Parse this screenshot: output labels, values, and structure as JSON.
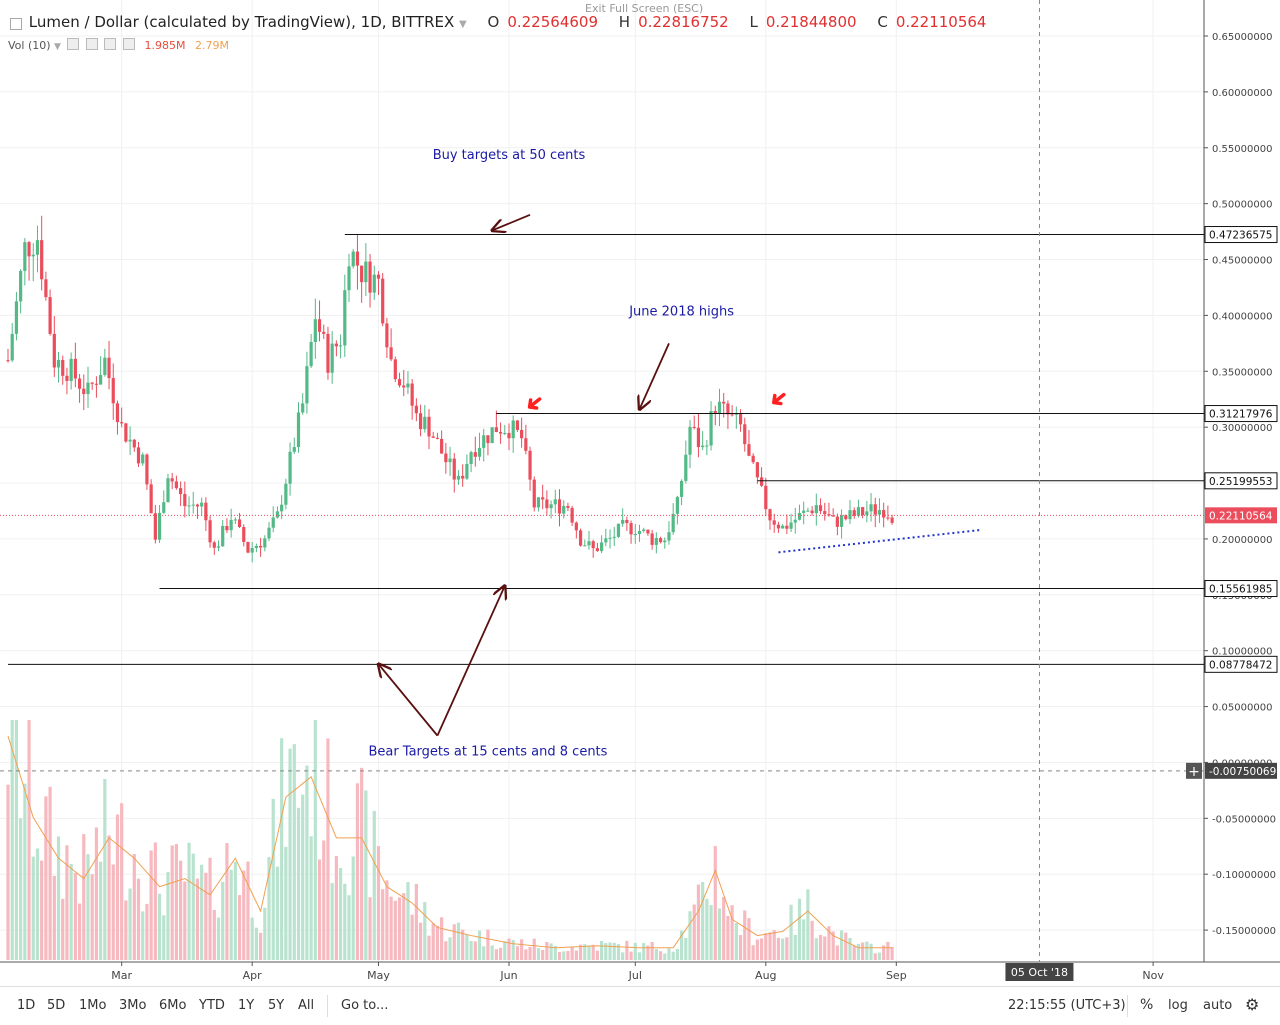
{
  "legend": {
    "title": "Lumen / Dollar (calculated by TradingView), 1D, BITTREX",
    "open_label": "O",
    "open": "0.22564609",
    "high_label": "H",
    "high": "0.22816752",
    "low_label": "L",
    "low": "0.21844800",
    "close_label": "C",
    "close": "0.22110564",
    "vol_label": "Vol (10)",
    "vol_a": "1.985M",
    "vol_b": "2.79M"
  },
  "exit_fullscreen": "Exit Full Screen (ESC)",
  "toolbar": {
    "timeframes": [
      "1D",
      "5D",
      "1Mo",
      "3Mo",
      "6Mo",
      "YTD",
      "1Y",
      "5Y",
      "All"
    ],
    "goto": "Go to...",
    "time": "22:15:55 (UTC+3)",
    "percent": "%",
    "log": "log",
    "auto": "auto",
    "gear_icon": "gear-icon"
  },
  "colors": {
    "up": "#53b987",
    "down": "#eb4d5c",
    "vol_up": "#b9e3cf",
    "vol_down": "#f6b9bf",
    "annotation": "#1a1aa6",
    "arrow": "#5a1010",
    "red_arrow": "#ff2020"
  },
  "chart_data": {
    "type": "candlestick",
    "symbol": "XLM/USD",
    "interval": "1D",
    "ylim": [
      -0.185,
      0.67
    ],
    "y_ticks": [
      "0.65000000",
      "0.60000000",
      "0.55000000",
      "0.50000000",
      "0.45000000",
      "0.40000000",
      "0.35000000",
      "0.30000000",
      "0.25000000",
      "0.20000000",
      "0.15000000",
      "0.10000000",
      "0.05000000",
      "0.00000000",
      "-0.05000000",
      "-0.10000000",
      "-0.15000000"
    ],
    "x_labels": [
      {
        "label": "Mar",
        "day": 27
      },
      {
        "label": "Apr",
        "day": 58
      },
      {
        "label": "May",
        "day": 88
      },
      {
        "label": "Jun",
        "day": 119
      },
      {
        "label": "Jul",
        "day": 149
      },
      {
        "label": "Aug",
        "day": 180
      },
      {
        "label": "Sep",
        "day": 211
      },
      {
        "label": "Nov",
        "day": 272
      }
    ],
    "x_highlight": {
      "label": "05 Oct '18",
      "day": 245
    },
    "crosshair": {
      "day": 245,
      "price": -0.0075,
      "label": "-0.00750069"
    },
    "price_lines": [
      {
        "value": 0.47236575,
        "label": "0.47236575",
        "from_day": 80
      },
      {
        "value": 0.31217976,
        "label": "0.31217976",
        "from_day": 116
      },
      {
        "value": 0.25199553,
        "label": "0.25199553",
        "from_day": 178
      },
      {
        "value": 0.15561985,
        "label": "0.15561985",
        "from_day": 36
      },
      {
        "value": 0.08778472,
        "label": "0.08778472",
        "from_day": 0
      }
    ],
    "last_price": {
      "value": 0.22110564,
      "label": "0.22110564"
    },
    "annotations": [
      {
        "text": "Buy targets at 50 cents",
        "day": 119,
        "price": 0.54
      },
      {
        "text": "June 2018 highs",
        "day": 160,
        "price": 0.4
      },
      {
        "text": "Bear Targets at 15 cents and 8 cents",
        "day": 114,
        "price": 0.006
      }
    ],
    "arrows": [
      {
        "from": [
          124,
          0.49
        ],
        "to": [
          115,
          0.476
        ]
      },
      {
        "from": [
          157,
          0.375
        ],
        "to": [
          150,
          0.316
        ]
      },
      {
        "from": [
          102,
          0.024
        ],
        "to": [
          88,
          0.088
        ]
      },
      {
        "from": [
          102,
          0.024
        ],
        "to": [
          118,
          0.158
        ]
      }
    ],
    "red_arrows": [
      {
        "day": 122,
        "price": 0.318
      },
      {
        "day": 180,
        "price": 0.322
      }
    ],
    "trendline": {
      "from": [
        183,
        0.188
      ],
      "to": [
        231,
        0.208
      ]
    },
    "anchors": [
      [
        0,
        0.36
      ],
      [
        4,
        0.46
      ],
      [
        7,
        0.47
      ],
      [
        11,
        0.36
      ],
      [
        15,
        0.35
      ],
      [
        19,
        0.33
      ],
      [
        23,
        0.36
      ],
      [
        27,
        0.3
      ],
      [
        32,
        0.27
      ],
      [
        35,
        0.2
      ],
      [
        38,
        0.26
      ],
      [
        42,
        0.23
      ],
      [
        46,
        0.23
      ],
      [
        49,
        0.19
      ],
      [
        53,
        0.22
      ],
      [
        57,
        0.19
      ],
      [
        61,
        0.2
      ],
      [
        64,
        0.22
      ],
      [
        67,
        0.27
      ],
      [
        70,
        0.32
      ],
      [
        73,
        0.4
      ],
      [
        76,
        0.36
      ],
      [
        79,
        0.38
      ],
      [
        81,
        0.46
      ],
      [
        84,
        0.44
      ],
      [
        88,
        0.43
      ],
      [
        91,
        0.36
      ],
      [
        94,
        0.34
      ],
      [
        97,
        0.31
      ],
      [
        100,
        0.3
      ],
      [
        104,
        0.27
      ],
      [
        107,
        0.25
      ],
      [
        110,
        0.28
      ],
      [
        113,
        0.29
      ],
      [
        116,
        0.3
      ],
      [
        119,
        0.3
      ],
      [
        122,
        0.29
      ],
      [
        125,
        0.23
      ],
      [
        129,
        0.23
      ],
      [
        133,
        0.23
      ],
      [
        136,
        0.2
      ],
      [
        139,
        0.19
      ],
      [
        143,
        0.2
      ],
      [
        146,
        0.21
      ],
      [
        149,
        0.21
      ],
      [
        153,
        0.2
      ],
      [
        156,
        0.2
      ],
      [
        159,
        0.23
      ],
      [
        162,
        0.3
      ],
      [
        165,
        0.28
      ],
      [
        168,
        0.32
      ],
      [
        171,
        0.31
      ],
      [
        174,
        0.3
      ],
      [
        176,
        0.27
      ],
      [
        178,
        0.25
      ],
      [
        181,
        0.22
      ],
      [
        184,
        0.21
      ],
      [
        188,
        0.22
      ],
      [
        192,
        0.23
      ],
      [
        196,
        0.215
      ],
      [
        200,
        0.22
      ],
      [
        204,
        0.225
      ],
      [
        208,
        0.227
      ],
      [
        210,
        0.221
      ]
    ],
    "volume": {
      "anchors": [
        [
          0,
          0.55
        ],
        [
          6,
          0.35
        ],
        [
          12,
          0.25
        ],
        [
          18,
          0.2
        ],
        [
          24,
          0.3
        ],
        [
          30,
          0.25
        ],
        [
          36,
          0.18
        ],
        [
          42,
          0.2
        ],
        [
          48,
          0.16
        ],
        [
          54,
          0.25
        ],
        [
          60,
          0.12
        ],
        [
          66,
          0.4
        ],
        [
          72,
          0.45
        ],
        [
          78,
          0.3
        ],
        [
          84,
          0.3
        ],
        [
          90,
          0.18
        ],
        [
          96,
          0.14
        ],
        [
          102,
          0.08
        ],
        [
          110,
          0.06
        ],
        [
          120,
          0.04
        ],
        [
          130,
          0.03
        ],
        [
          140,
          0.035
        ],
        [
          150,
          0.03
        ],
        [
          158,
          0.03
        ],
        [
          164,
          0.12
        ],
        [
          168,
          0.22
        ],
        [
          172,
          0.1
        ],
        [
          178,
          0.06
        ],
        [
          184,
          0.07
        ],
        [
          190,
          0.12
        ],
        [
          196,
          0.06
        ],
        [
          202,
          0.03
        ],
        [
          210,
          0.03
        ]
      ]
    }
  }
}
